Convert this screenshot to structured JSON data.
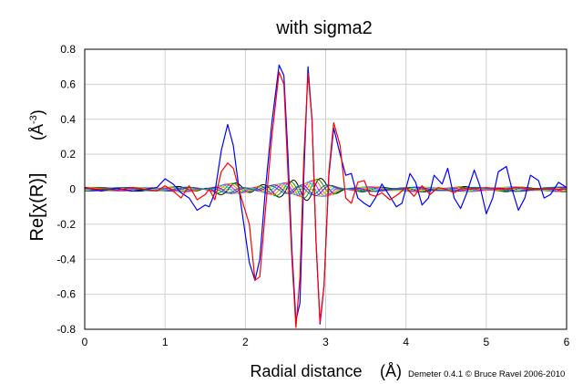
{
  "chart_data": {
    "type": "line",
    "title": "with sigma2",
    "xlabel": "Radial distance",
    "xlabel_unit": "(Å)",
    "ylabel_main": "Re[χ(R)]",
    "ylabel_unit_base": "(Å",
    "ylabel_unit_exp": "-3",
    "ylabel_unit_close": ")",
    "credit": "Demeter 0.4.1 © Bruce Ravel 2006-2010",
    "xlim": [
      0,
      6
    ],
    "ylim": [
      -0.8,
      0.8
    ],
    "xticks": [
      "0",
      "1",
      "2",
      "3",
      "4",
      "5",
      "6"
    ],
    "yticks": [
      "-0.8",
      "-0.6",
      "-0.4",
      "-0.2",
      "0",
      "0.2",
      "0.4",
      "0.6",
      "0.8"
    ],
    "grid": true,
    "series": [
      {
        "color": "#0000ff",
        "x": [
          0,
          0.2,
          0.4,
          0.6,
          0.75,
          0.9,
          1.0,
          1.1,
          1.2,
          1.3,
          1.4,
          1.5,
          1.55,
          1.62,
          1.7,
          1.78,
          1.85,
          1.95,
          2.05,
          2.12,
          2.18,
          2.25,
          2.33,
          2.42,
          2.48,
          2.53,
          2.58,
          2.63,
          2.68,
          2.73,
          2.78,
          2.83,
          2.88,
          2.93,
          2.98,
          3.04,
          3.1,
          3.18,
          3.25,
          3.32,
          3.4,
          3.48,
          3.55,
          3.62,
          3.7,
          3.8,
          3.88,
          3.95,
          4.05,
          4.12,
          4.2,
          4.28,
          4.35,
          4.45,
          4.52,
          4.6,
          4.68,
          4.75,
          4.85,
          4.92,
          5.0,
          5.08,
          5.15,
          5.25,
          5.32,
          5.4,
          5.48,
          5.55,
          5.65,
          5.72,
          5.8,
          5.9,
          6.0
        ],
        "values": [
          0.01,
          -0.01,
          0.005,
          -0.01,
          0.0,
          0.01,
          0.06,
          0.03,
          -0.02,
          -0.05,
          -0.12,
          -0.09,
          -0.1,
          -0.02,
          0.22,
          0.37,
          0.25,
          -0.1,
          -0.42,
          -0.52,
          -0.4,
          0.0,
          0.38,
          0.71,
          0.65,
          0.2,
          -0.35,
          -0.75,
          -0.65,
          0.1,
          0.7,
          0.4,
          -0.3,
          -0.77,
          -0.55,
          0.08,
          0.35,
          0.2,
          0.08,
          0.09,
          -0.05,
          -0.08,
          -0.1,
          -0.05,
          0.03,
          -0.04,
          -0.1,
          -0.08,
          0.09,
          0.04,
          -0.09,
          -0.05,
          0.08,
          0.03,
          0.12,
          -0.05,
          -0.11,
          -0.03,
          0.11,
          0.02,
          -0.14,
          -0.05,
          0.1,
          0.13,
          0.0,
          -0.12,
          -0.05,
          0.08,
          0.05,
          -0.05,
          -0.03,
          0.04,
          0.01
        ]
      },
      {
        "color": "#ff0000",
        "x": [
          0,
          0.2,
          0.4,
          0.6,
          0.75,
          0.9,
          1.0,
          1.1,
          1.2,
          1.3,
          1.4,
          1.5,
          1.55,
          1.62,
          1.7,
          1.78,
          1.85,
          1.95,
          2.05,
          2.12,
          2.18,
          2.25,
          2.33,
          2.42,
          2.48,
          2.53,
          2.58,
          2.63,
          2.68,
          2.73,
          2.78,
          2.83,
          2.88,
          2.93,
          2.98,
          3.04,
          3.1,
          3.18,
          3.25,
          3.32,
          3.4,
          3.48,
          3.55,
          3.62,
          3.7,
          3.8,
          3.9,
          4.0,
          4.1,
          4.2,
          4.3,
          4.4,
          4.5,
          4.6,
          4.7,
          4.8,
          5.0,
          5.2,
          5.4,
          5.6,
          5.8,
          6.0
        ],
        "values": [
          0.005,
          0.0,
          -0.005,
          0.01,
          0.0,
          -0.01,
          0.02,
          -0.01,
          -0.05,
          0.02,
          -0.06,
          -0.03,
          0.0,
          -0.06,
          0.1,
          0.15,
          0.12,
          -0.05,
          -0.2,
          -0.52,
          -0.5,
          -0.12,
          0.3,
          0.67,
          0.6,
          0.1,
          -0.4,
          -0.79,
          -0.5,
          0.2,
          0.66,
          0.4,
          -0.3,
          -0.76,
          -0.55,
          0.1,
          0.38,
          0.25,
          -0.05,
          -0.08,
          0.04,
          0.05,
          -0.03,
          -0.04,
          -0.02,
          -0.06,
          -0.03,
          0.01,
          -0.04,
          0.02,
          -0.03,
          0.01,
          0.0,
          -0.02,
          0.01,
          0.0,
          0.01,
          0.0,
          0.01,
          0.0,
          0.0,
          0.0
        ]
      },
      {
        "color": "#000000",
        "amp": 0.07
      },
      {
        "color": "#00a000",
        "amp": 0.06
      },
      {
        "color": "#ff8000",
        "amp": 0.055
      },
      {
        "color": "#ff00ff",
        "amp": 0.05
      },
      {
        "color": "#00c8c8",
        "amp": 0.045
      },
      {
        "color": "#c8c800",
        "amp": 0.04
      },
      {
        "color": "#8000ff",
        "amp": 0.035
      },
      {
        "color": "#008080",
        "amp": 0.03
      }
    ]
  }
}
